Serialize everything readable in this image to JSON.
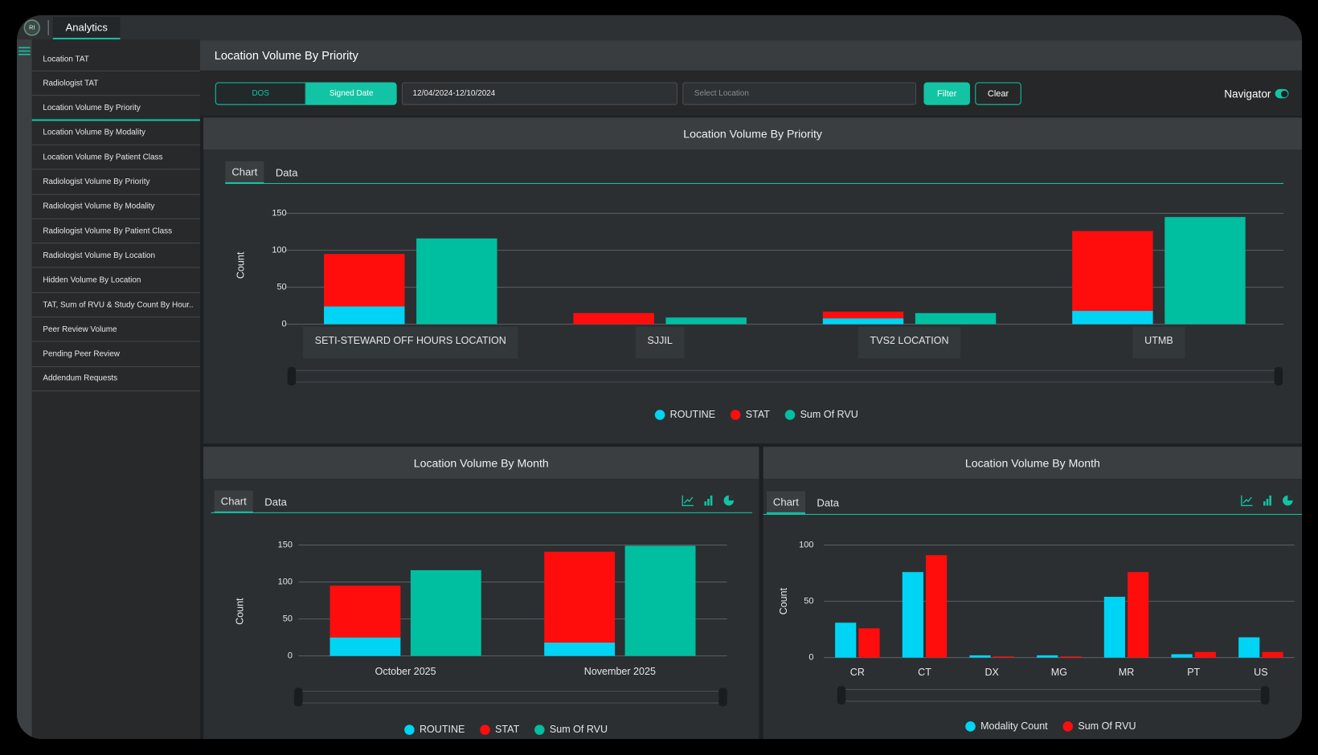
{
  "app_tab": "Analytics",
  "sidebar": {
    "items": [
      "Location TAT",
      "Radiologist TAT",
      "Location Volume By Priority",
      "Location Volume By Modality",
      "Location Volume By Patient Class",
      "Radiologist Volume By Priority",
      "Radiologist Volume By Modality",
      "Radiologist Volume By Patient Class",
      "Radiologist Volume By Location",
      "Hidden Volume By Location",
      "TAT, Sum of RVU & Study Count By Hour..",
      "Peer Review Volume",
      "Pending Peer Review",
      "Addendum Requests"
    ],
    "active": 2
  },
  "page_title": "Location Volume By Priority",
  "filters": {
    "date_type": [
      "DOS",
      "Signed Date"
    ],
    "date_type_active": 1,
    "date_range": "12/04/2024-12/10/2024",
    "location_placeholder": "Select Location",
    "buttons": [
      "Filter",
      "Clear"
    ],
    "navigator": "Navigator"
  },
  "chart_data": [
    {
      "type": "bar",
      "title": "Location Volume By Priority",
      "tabs": [
        "Chart",
        "Data"
      ],
      "ylabel": "Count",
      "categories": [
        "SETI-STEWARD OFF HOURS LOCATION",
        "SJJIL",
        "TVS2 LOCATION",
        "UTMB"
      ],
      "series": [
        {
          "name": "ROUTINE",
          "color": "#00d4f5",
          "stacked": true,
          "values": [
            24,
            0,
            8,
            18
          ]
        },
        {
          "name": "STAT",
          "color": "#ff0d0d",
          "stacked": true,
          "values": [
            71,
            15,
            9,
            108
          ]
        },
        {
          "name": "Sum Of RVU",
          "color": "#00bfa0",
          "values": [
            116,
            9,
            15,
            145
          ]
        }
      ],
      "ylim": [
        0,
        150
      ],
      "yticks": [
        0,
        50,
        100,
        150
      ],
      "grid": true
    },
    {
      "type": "bar",
      "title": "Location Volume By Month",
      "tabs": [
        "Chart",
        "Data"
      ],
      "ylabel": "Count",
      "categories": [
        "October 2025",
        "November 2025"
      ],
      "series": [
        {
          "name": "ROUTINE",
          "color": "#00d4f5",
          "stacked": true,
          "values": [
            25,
            18
          ]
        },
        {
          "name": "STAT",
          "color": "#ff0d0d",
          "stacked": true,
          "values": [
            70,
            123
          ]
        },
        {
          "name": "Sum Of RVU",
          "color": "#00bfa0",
          "values": [
            116,
            149
          ]
        }
      ],
      "ylim": [
        0,
        150
      ],
      "yticks": [
        0,
        50,
        100,
        150
      ],
      "grid": true
    },
    {
      "type": "bar",
      "title": "Location Volume By Month",
      "tabs": [
        "Chart",
        "Data"
      ],
      "ylabel": "Count",
      "categories": [
        "CR",
        "CT",
        "DX",
        "MG",
        "MR",
        "PT",
        "US"
      ],
      "series": [
        {
          "name": "Modality Count",
          "color": "#00d4f5",
          "values": [
            31,
            76,
            2,
            2,
            54,
            3,
            18
          ]
        },
        {
          "name": "Sum Of RVU",
          "color": "#ff0d0d",
          "values": [
            26,
            91,
            1,
            1,
            76,
            5,
            5
          ]
        }
      ],
      "ylim": [
        0,
        100
      ],
      "yticks": [
        0,
        50,
        100
      ],
      "grid": true
    }
  ]
}
